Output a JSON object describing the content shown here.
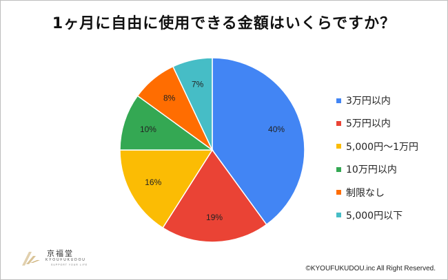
{
  "chart_data": {
    "type": "pie",
    "title": "1ヶ月に自由に使用できる金額はいくらですか？",
    "slices": [
      {
        "label": "3万円以内",
        "value": 40,
        "display": "40%",
        "color": "#4285F4"
      },
      {
        "label": "5万円以内",
        "value": 19,
        "display": "19%",
        "color": "#EA4335"
      },
      {
        "label": "5,000円〜1万円",
        "value": 16,
        "display": "16%",
        "color": "#FBBC04"
      },
      {
        "label": "10万円以内",
        "value": 10,
        "display": "10%",
        "color": "#34A853"
      },
      {
        "label": "制限なし",
        "value": 8,
        "display": "8%",
        "color": "#FF6D01"
      },
      {
        "label": "5,000円以下",
        "value": 7,
        "display": "7%",
        "color": "#46BDC6"
      }
    ],
    "legend_position": "right"
  },
  "logo": {
    "name": "京福堂",
    "romaji": "KYOUFUKUDOU",
    "tagline": "SUPPORT YOUR LIFE",
    "mark_color": "#C9A96B"
  },
  "copyright": "©KYOUFUKUDOU.inc All Right Reserved."
}
